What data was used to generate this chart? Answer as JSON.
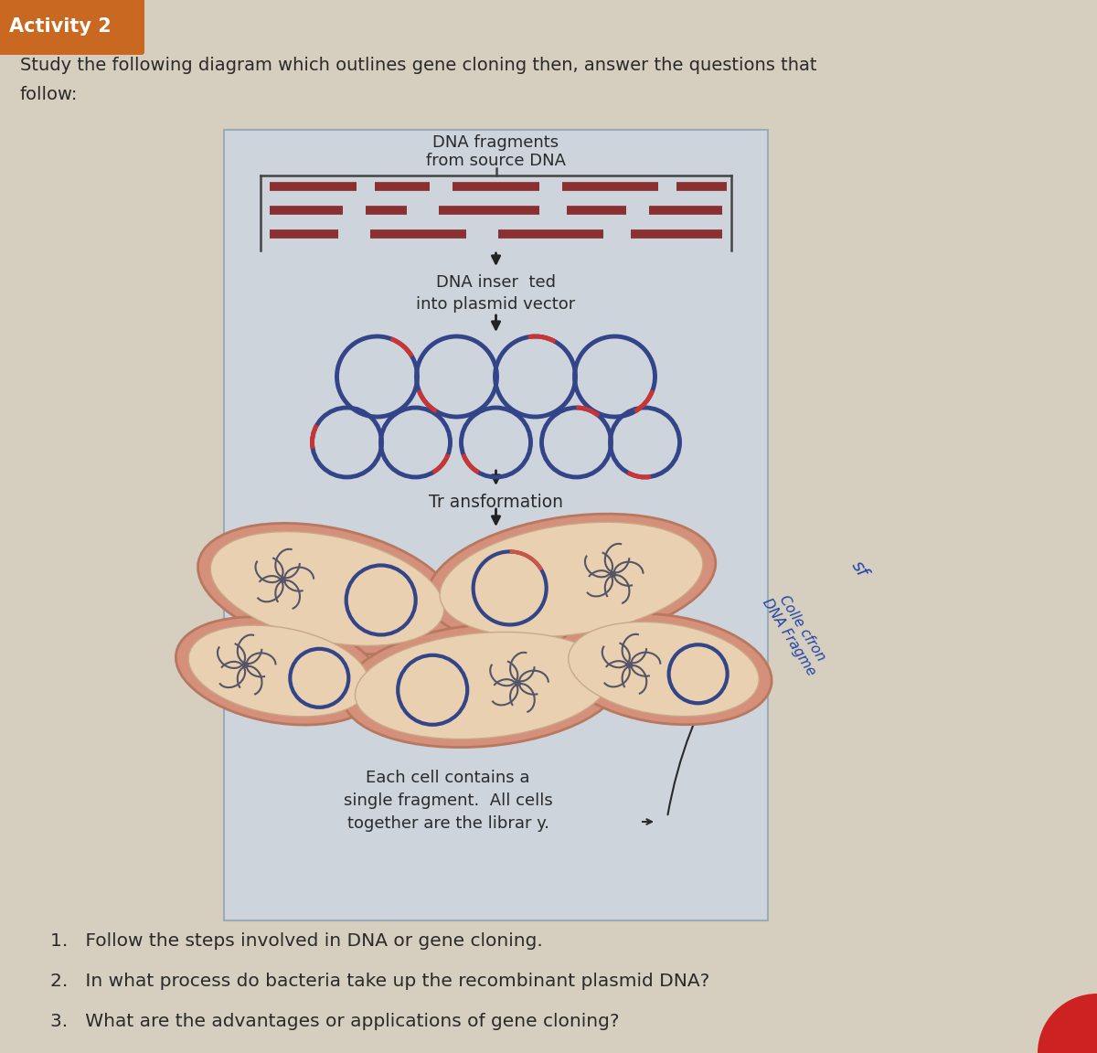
{
  "page_bg": "#d6cfc0",
  "diagram_bg": "#cdd4dc",
  "activity_label": "Activity 2",
  "activity_bg": "#c96820",
  "header_text1": "Study the following diagram which outlines gene cloning then, answer the questions that",
  "header_text2": "follow:",
  "diagram_title1": "DNA fragments",
  "diagram_title2": "from source DNA",
  "label_inserted": "DNA inser  ted\ninto plasmid vector",
  "label_transformation": "Tr ansformation",
  "label_library": "Each cell contains a\nsingle fragment.  All cells\ntogether are the librar y.",
  "question1": "1.   Follow the steps involved in DNA or gene cloning.",
  "question2": "2.   In what process do bacteria take up the recombinant plasmid DNA?",
  "question3": "3.   What are the advantages or applications of gene cloning?",
  "dna_bar_color": "#8B3030",
  "plasmid_blue": "#334488",
  "plasmid_red": "#cc3333",
  "bacteria_outer": "#d4907a",
  "bacteria_inner": "#e8d0b0",
  "bacteria_ring_blue": "#334488",
  "bacteria_ring_red": "#cc5544",
  "chrom_color": "#555566",
  "handwriting_color": "#2244aa",
  "text_color": "#2a2a2a",
  "arrow_color": "#222222",
  "red_corner": "#cc2222"
}
